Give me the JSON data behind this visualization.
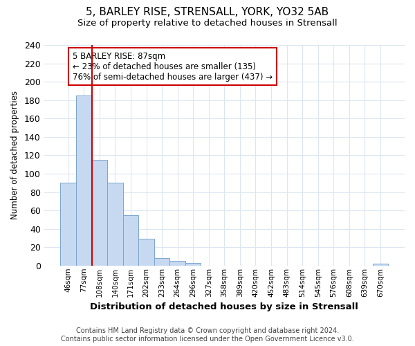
{
  "title": "5, BARLEY RISE, STRENSALL, YORK, YO32 5AB",
  "subtitle": "Size of property relative to detached houses in Strensall",
  "xlabel": "Distribution of detached houses by size in Strensall",
  "ylabel": "Number of detached properties",
  "bar_labels": [
    "46sqm",
    "77sqm",
    "108sqm",
    "140sqm",
    "171sqm",
    "202sqm",
    "233sqm",
    "264sqm",
    "296sqm",
    "327sqm",
    "358sqm",
    "389sqm",
    "420sqm",
    "452sqm",
    "483sqm",
    "514sqm",
    "545sqm",
    "576sqm",
    "608sqm",
    "639sqm",
    "670sqm"
  ],
  "bar_heights": [
    90,
    185,
    115,
    90,
    55,
    29,
    8,
    5,
    3,
    0,
    0,
    0,
    0,
    0,
    0,
    0,
    0,
    0,
    0,
    0,
    2
  ],
  "bar_color": "#c6d9f1",
  "bar_edge_color": "#7ca6cd",
  "vline_x": 1.5,
  "vline_color": "#cc0000",
  "annotation_text": "5 BARLEY RISE: 87sqm\n← 23% of detached houses are smaller (135)\n76% of semi-detached houses are larger (437) →",
  "annotation_box_color": "#ffffff",
  "annotation_box_edge_color": "#cc0000",
  "ylim": [
    0,
    240
  ],
  "yticks": [
    0,
    20,
    40,
    60,
    80,
    100,
    120,
    140,
    160,
    180,
    200,
    220,
    240
  ],
  "footer_line1": "Contains HM Land Registry data © Crown copyright and database right 2024.",
  "footer_line2": "Contains public sector information licensed under the Open Government Licence v3.0.",
  "background_color": "#ffffff",
  "grid_color": "#dce6f0",
  "title_fontsize": 11,
  "subtitle_fontsize": 9.5,
  "annotation_fontsize": 8.5,
  "xlabel_fontsize": 9.5,
  "ylabel_fontsize": 8.5,
  "footer_fontsize": 7
}
